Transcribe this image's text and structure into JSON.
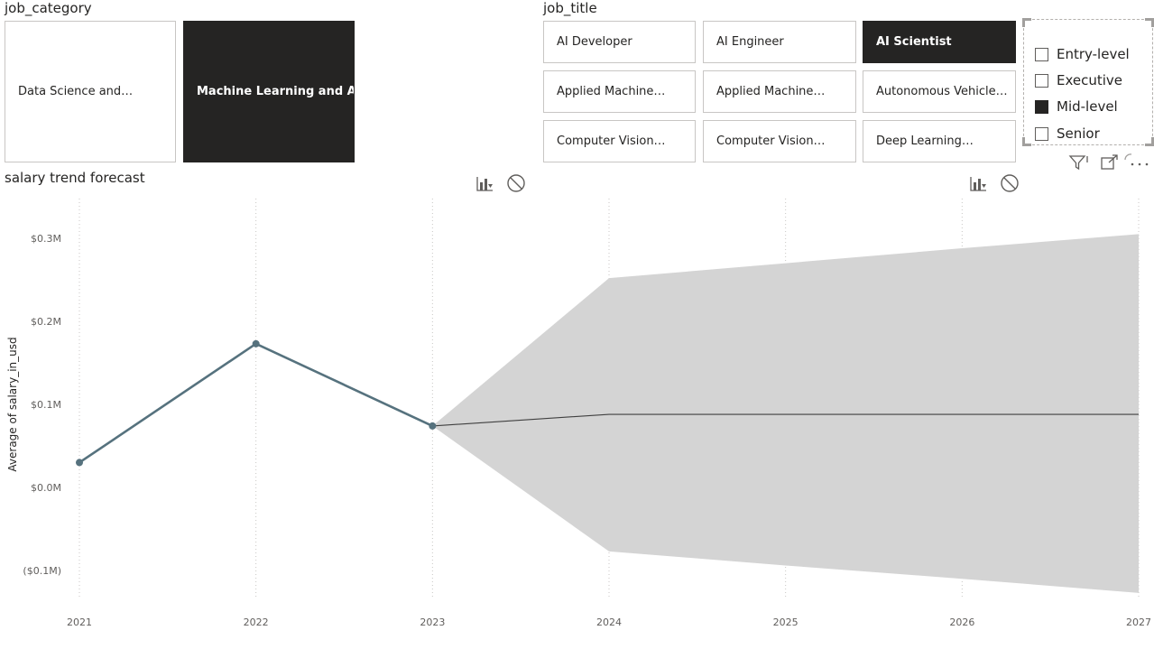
{
  "job_category": {
    "title": "job_category",
    "tiles": [
      {
        "label": "Data Science and…",
        "selected": false
      },
      {
        "label": "Machine Learning and AI",
        "selected": true
      }
    ]
  },
  "job_title": {
    "title": "job_title",
    "tiles": [
      {
        "label": "AI Developer",
        "selected": false
      },
      {
        "label": "AI Engineer",
        "selected": false
      },
      {
        "label": "AI Scientist",
        "selected": true
      },
      {
        "label": "Applied Machine…",
        "selected": false
      },
      {
        "label": "Applied Machine…",
        "selected": false
      },
      {
        "label": "Autonomous Vehicle…",
        "selected": false
      },
      {
        "label": "Computer Vision…",
        "selected": false
      },
      {
        "label": "Computer Vision…",
        "selected": false
      },
      {
        "label": "Deep Learning…",
        "selected": false
      }
    ]
  },
  "experience_level": {
    "items": [
      {
        "label": "Entry-level",
        "checked": false
      },
      {
        "label": "Executive",
        "checked": false
      },
      {
        "label": "Mid-level",
        "checked": true
      },
      {
        "label": "Senior",
        "checked": false
      }
    ]
  },
  "visual_header_icons": [
    "filter-icon",
    "focus-mode-icon",
    "more-options-icon"
  ],
  "chart_toolbar_icons": [
    "drill-icon",
    "no-filter-icon"
  ],
  "chart": {
    "title": "salary trend forecast"
  },
  "chart_data": {
    "type": "line",
    "title": "salary trend forecast",
    "xlabel": "",
    "ylabel": "Average of salary_in_usd",
    "x_ticks": [
      "2021",
      "2022",
      "2023",
      "2024",
      "2025",
      "2026",
      "2027"
    ],
    "y_ticks": [
      "$0.3M",
      "$0.2M",
      "$0.1M",
      "$0.0M",
      "($0.1M)"
    ],
    "ylim": [
      -0.13,
      0.35
    ],
    "y_tick_values": [
      0.3,
      0.2,
      0.1,
      0.0,
      -0.1
    ],
    "grid": "vertical-dotted",
    "series": [
      {
        "values": [
          {
            "x": 2021,
            "y": 0.03
          },
          {
            "x": 2022,
            "y": 0.173
          },
          {
            "x": 2023,
            "y": 0.074
          }
        ],
        "color": "#56727e"
      }
    ],
    "forecast": {
      "values": [
        {
          "x": 2023,
          "y": 0.074
        },
        {
          "x": 2024,
          "y": 0.088
        },
        {
          "x": 2025,
          "y": 0.088
        },
        {
          "x": 2026,
          "y": 0.088
        },
        {
          "x": 2027,
          "y": 0.088
        }
      ],
      "upper": [
        {
          "x": 2023,
          "y": 0.074
        },
        {
          "x": 2024,
          "y": 0.252
        },
        {
          "x": 2025,
          "y": 0.27
        },
        {
          "x": 2026,
          "y": 0.288
        },
        {
          "x": 2027,
          "y": 0.305
        }
      ],
      "lower": [
        {
          "x": 2023,
          "y": 0.074
        },
        {
          "x": 2024,
          "y": -0.077
        },
        {
          "x": 2025,
          "y": -0.094
        },
        {
          "x": 2026,
          "y": -0.11
        },
        {
          "x": 2027,
          "y": -0.127
        }
      ],
      "line_color": "#404040",
      "band_color": "#d4d4d4"
    }
  }
}
